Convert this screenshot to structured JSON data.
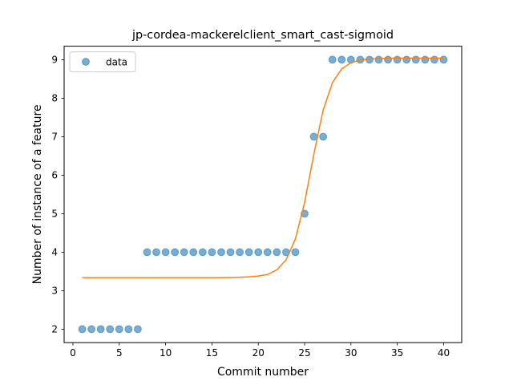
{
  "chart_data": {
    "type": "scatter",
    "title": "jp-cordea-mackerelclient_smart_cast-sigmoid",
    "xlabel": "Commit number",
    "ylabel": "Number of instance of a feature",
    "xlim": [
      -0.95,
      41.95
    ],
    "ylim": [
      1.65,
      9.35
    ],
    "xticks": [
      0,
      5,
      10,
      15,
      20,
      25,
      30,
      35,
      40
    ],
    "yticks": [
      2,
      3,
      4,
      5,
      6,
      7,
      8,
      9
    ],
    "grid": false,
    "legend": {
      "placement": "top-left",
      "entries": [
        "data"
      ]
    },
    "series": [
      {
        "name": "data",
        "kind": "scatter",
        "color": "#1f77b4",
        "x": [
          1,
          2,
          3,
          4,
          5,
          6,
          7,
          8,
          9,
          10,
          11,
          12,
          13,
          14,
          15,
          16,
          17,
          18,
          19,
          20,
          21,
          22,
          23,
          24,
          25,
          26,
          27,
          28,
          29,
          30,
          31,
          32,
          33,
          34,
          35,
          36,
          37,
          38,
          39,
          40
        ],
        "y": [
          2,
          2,
          2,
          2,
          2,
          2,
          2,
          4,
          4,
          4,
          4,
          4,
          4,
          4,
          4,
          4,
          4,
          4,
          4,
          4,
          4,
          4,
          4,
          4,
          5,
          7,
          7,
          9,
          9,
          9,
          9,
          9,
          9,
          9,
          9,
          9,
          9,
          9,
          9,
          9
        ]
      },
      {
        "kind": "line",
        "color": "#ff7f0e",
        "x": [
          1,
          2,
          3,
          4,
          5,
          6,
          7,
          8,
          9,
          10,
          11,
          12,
          13,
          14,
          15,
          16,
          17,
          18,
          19,
          20,
          21,
          22,
          23,
          24,
          25,
          26,
          27,
          28,
          29,
          30,
          31,
          32,
          33,
          34,
          35,
          36,
          37,
          38,
          39,
          40
        ],
        "y": [
          3.34,
          3.34,
          3.34,
          3.34,
          3.34,
          3.34,
          3.34,
          3.34,
          3.34,
          3.34,
          3.34,
          3.34,
          3.34,
          3.34,
          3.34,
          3.34,
          3.345,
          3.35,
          3.36,
          3.38,
          3.42,
          3.54,
          3.8,
          4.34,
          5.29,
          6.55,
          7.69,
          8.4,
          8.76,
          8.92,
          8.99,
          9.02,
          9.03,
          9.04,
          9.04,
          9.04,
          9.04,
          9.04,
          9.04,
          9.04
        ]
      }
    ]
  }
}
